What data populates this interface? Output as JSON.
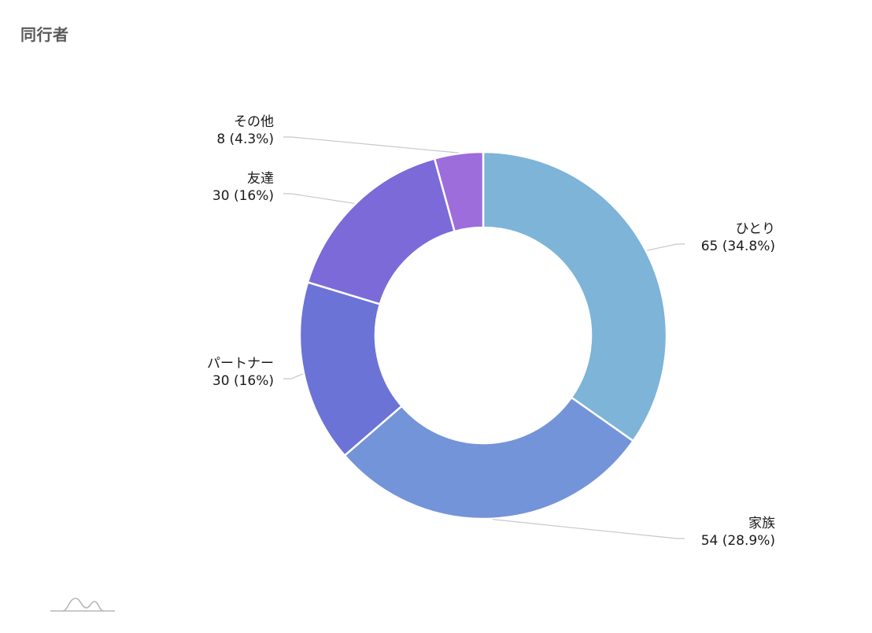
{
  "title": "同行者",
  "chart_data": {
    "type": "pie",
    "donut": true,
    "title": "同行者",
    "slices": [
      {
        "name": "ひとり",
        "value": 65,
        "percent_label": "65 (34.8%)",
        "color": "#7db4d8"
      },
      {
        "name": "家族",
        "value": 54,
        "percent_label": "54 (28.9%)",
        "color": "#7494d9"
      },
      {
        "name": "パートナー",
        "value": 30,
        "percent_label": "30 (16%)",
        "color": "#6b73d6"
      },
      {
        "name": "友達",
        "value": 30,
        "percent_label": "30 (16%)",
        "color": "#7b6ad8"
      },
      {
        "name": "その他",
        "value": 8,
        "percent_label": "8 (4.3%)",
        "color": "#9c6ddb"
      }
    ],
    "legend": "none"
  }
}
